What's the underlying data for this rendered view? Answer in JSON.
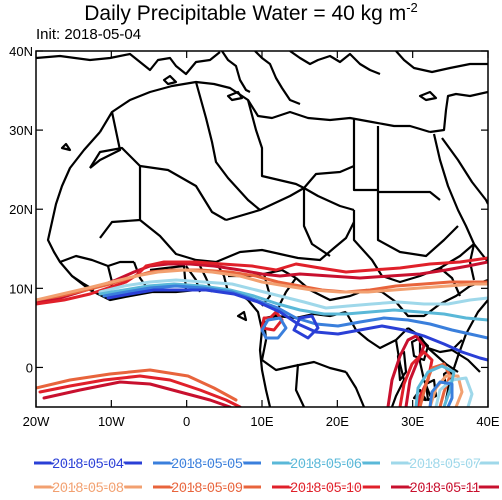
{
  "title": {
    "main": "Daily Precipitable Water = 40 kg m",
    "exponent": "-2"
  },
  "subtitle": "Init: 2018-05-04",
  "axes": {
    "lon_ticks": [
      {
        "lon": -20,
        "label": "20W"
      },
      {
        "lon": -10,
        "label": "10W"
      },
      {
        "lon": 0,
        "label": "0"
      },
      {
        "lon": 10,
        "label": "10E"
      },
      {
        "lon": 20,
        "label": "20E"
      },
      {
        "lon": 30,
        "label": "30E"
      },
      {
        "lon": 40,
        "label": "40E"
      }
    ],
    "lat_ticks": [
      {
        "lat": 40,
        "label": "40N"
      },
      {
        "lat": 30,
        "label": "30N"
      },
      {
        "lat": 20,
        "label": "20N"
      },
      {
        "lat": 10,
        "label": "10N"
      },
      {
        "lat": 0,
        "label": "0"
      }
    ],
    "lon_range": [
      -20,
      40
    ],
    "lat_range": [
      -5,
      40
    ]
  },
  "legend": [
    {
      "label": "2018-05-04",
      "color": "#2a3fd6"
    },
    {
      "label": "2018-05-05",
      "color": "#3a7fdc"
    },
    {
      "label": "2018-05-06",
      "color": "#5ab8d8"
    },
    {
      "label": "2018-05-07",
      "color": "#9fd8ea"
    },
    {
      "label": "2018-05-08",
      "color": "#f2a070"
    },
    {
      "label": "2018-05-09",
      "color": "#e8643c"
    },
    {
      "label": "2018-05-10",
      "color": "#e0202a"
    },
    {
      "label": "2018-05-11",
      "color": "#c8102e"
    }
  ]
}
